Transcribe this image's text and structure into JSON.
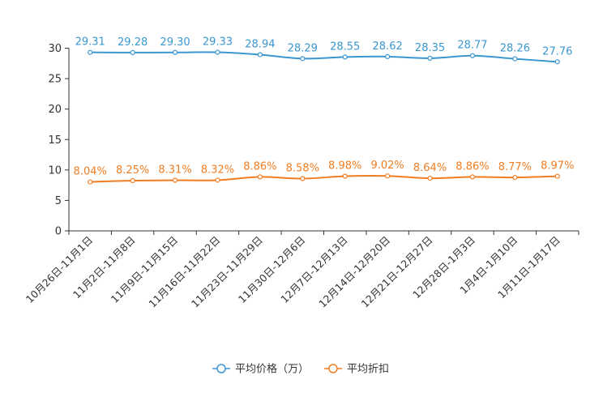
{
  "chart_data": {
    "type": "line",
    "title": "",
    "xlabel": "",
    "ylabel": "",
    "ylim": [
      0,
      30
    ],
    "yticks": [
      0,
      5,
      10,
      15,
      20,
      25,
      30
    ],
    "categories": [
      "10月26日-11月1日",
      "11月2日-11月8日",
      "11月9日-11月15日",
      "11月16日-11月22日",
      "11月23日-11月29日",
      "11月30日-12月6日",
      "12月7日-12月13日",
      "12月14日-12月20日",
      "12月21日-12月27日",
      "12月28日-1月3日",
      "1月4日-1月10日",
      "1月11日-1月17日"
    ],
    "series": [
      {
        "name": "平均价格（万）",
        "color": "#3a97d0",
        "values": [
          29.31,
          29.28,
          29.3,
          29.33,
          28.94,
          28.29,
          28.55,
          28.62,
          28.35,
          28.77,
          28.26,
          27.76
        ],
        "labels": [
          "29.31",
          "29.28",
          "29.30",
          "29.33",
          "28.94",
          "28.29",
          "28.55",
          "28.62",
          "28.35",
          "28.77",
          "28.26",
          "27.76"
        ]
      },
      {
        "name": "平均折扣",
        "color": "#f07d22",
        "values": [
          8.04,
          8.25,
          8.31,
          8.32,
          8.86,
          8.58,
          8.98,
          9.02,
          8.64,
          8.86,
          8.77,
          8.97
        ],
        "labels": [
          "8.04%",
          "8.25%",
          "8.31%",
          "8.32%",
          "8.86%",
          "8.58%",
          "8.98%",
          "9.02%",
          "8.64%",
          "8.86%",
          "8.77%",
          "8.97%"
        ]
      }
    ],
    "legend_position": "bottom-center",
    "grid": false
  }
}
